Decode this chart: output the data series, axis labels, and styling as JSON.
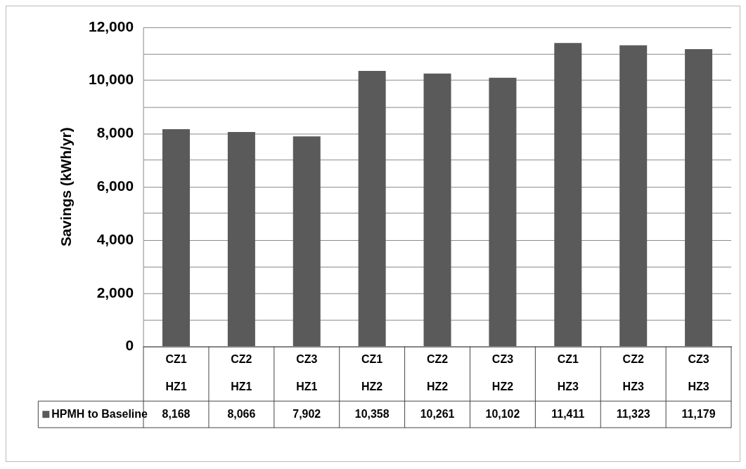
{
  "chart_data": {
    "type": "bar",
    "ylabel": "Savings (kWh/yr)",
    "categories": [
      "CZ1 HZ1",
      "CZ2 HZ1",
      "CZ3 HZ1",
      "CZ1 HZ2",
      "CZ2 HZ2",
      "CZ3 HZ2",
      "CZ1 HZ3",
      "CZ2 HZ3",
      "CZ3 HZ3"
    ],
    "series": [
      {
        "name": "HPMH to Baseline",
        "color": "#5a5a5a",
        "values": [
          8168,
          8066,
          7902,
          10358,
          10261,
          10102,
          11411,
          11323,
          11179
        ],
        "value_labels": [
          "8,168",
          "8,066",
          "7,902",
          "10,358",
          "10,261",
          "10,102",
          "11,411",
          "11,323",
          "11,179"
        ]
      }
    ],
    "ylim": [
      0,
      12000
    ],
    "yticks": [
      0,
      {
        "value": 1000,
        "label": null
      },
      {
        "value": 2000,
        "label": "2,000"
      },
      {
        "value": 3000,
        "label": null
      },
      {
        "value": 4000,
        "label": "4,000"
      },
      {
        "value": 5000,
        "label": null
      },
      {
        "value": 6000,
        "label": "6,000"
      },
      {
        "value": 7000,
        "label": null
      },
      {
        "value": 8000,
        "label": "8,000"
      },
      {
        "value": 9000,
        "label": null
      },
      {
        "value": 10000,
        "label": "10,000"
      },
      {
        "value": 11000,
        "label": null
      },
      {
        "value": 12000,
        "label": "12,000"
      }
    ],
    "grid": "y",
    "legend": "bottom"
  }
}
